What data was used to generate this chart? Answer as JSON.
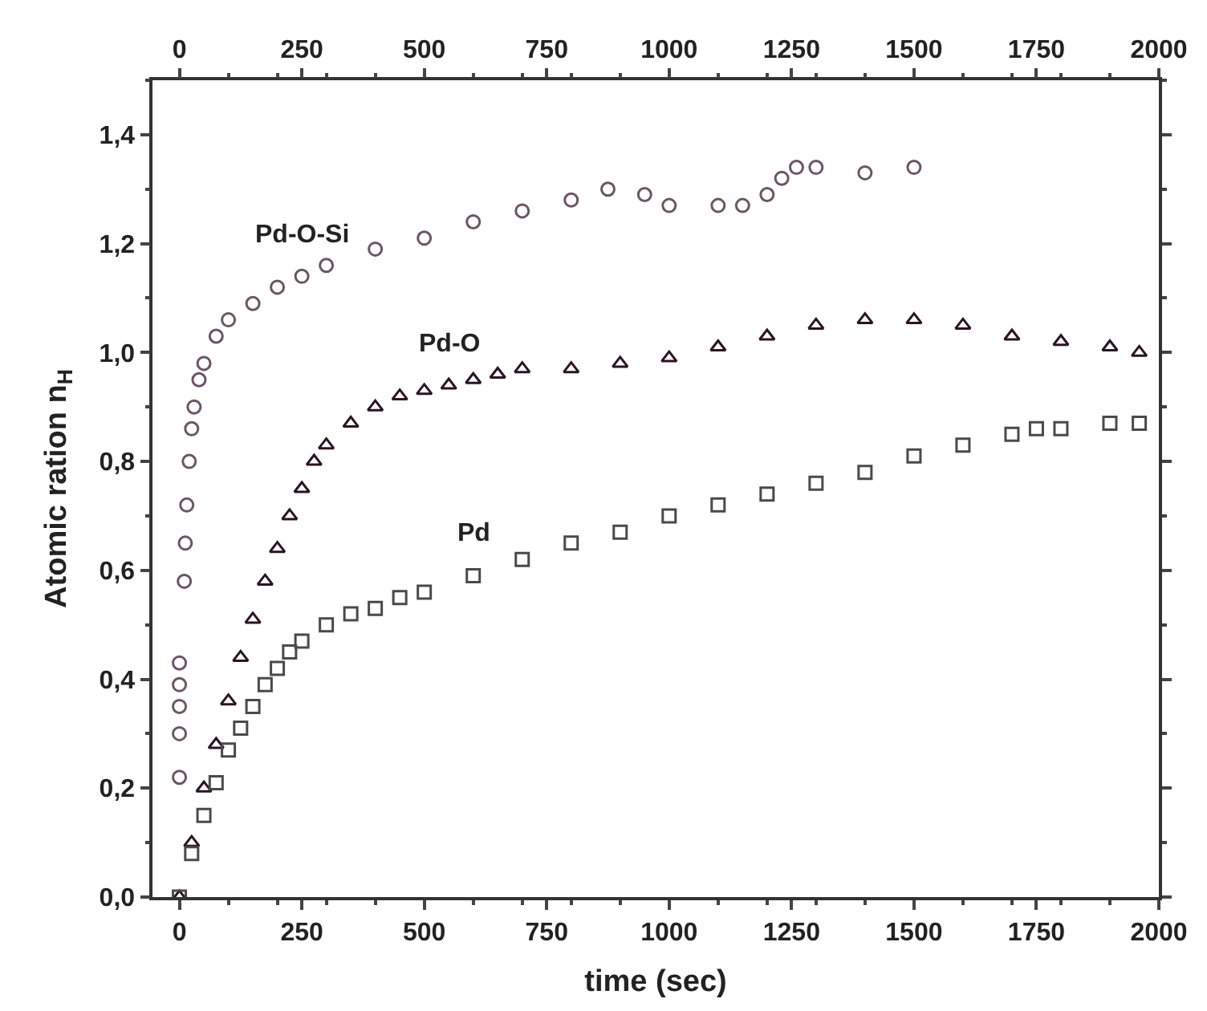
{
  "chart_data": {
    "type": "scatter",
    "xlabel": "time (sec)",
    "ylabel": "Atomic ration n$_{H}$",
    "xlim": [
      -55,
      2000
    ],
    "ylim": [
      0,
      1.5
    ],
    "xticks": [
      0,
      250,
      500,
      750,
      1000,
      1250,
      1500,
      1750,
      2000
    ],
    "x2lim": [
      -55,
      2000
    ],
    "x2ticks": [
      0,
      250,
      500,
      750,
      1000,
      1250,
      1500,
      1750,
      2000
    ],
    "yticks": [
      {
        "value": 0,
        "label": "0,0"
      },
      {
        "value": 0.2,
        "label": "0,2"
      },
      {
        "value": 0.4,
        "label": "0,4"
      },
      {
        "value": 0.6,
        "label": "0,6"
      },
      {
        "value": 0.8,
        "label": "0,8"
      },
      {
        "value": 1.0,
        "label": "1,0"
      },
      {
        "value": 1.2,
        "label": "1,2"
      },
      {
        "value": 1.4,
        "label": "1,4"
      }
    ],
    "legend": false,
    "series": [
      {
        "name": "Pd-O-Si",
        "color": "#6b5566",
        "marker": "circle",
        "x": [
          0,
          0,
          0,
          0,
          0,
          10,
          12,
          15,
          20,
          25,
          30,
          40,
          50,
          75,
          100,
          150,
          200,
          250,
          300,
          400,
          500,
          600,
          700,
          800,
          875,
          950,
          1000,
          1100,
          1150,
          1200,
          1230,
          1260,
          1300,
          1400,
          1500
        ],
        "values": [
          0.22,
          0.3,
          0.35,
          0.39,
          0.43,
          0.58,
          0.65,
          0.72,
          0.8,
          0.86,
          0.9,
          0.95,
          0.98,
          1.03,
          1.06,
          1.09,
          1.12,
          1.14,
          1.16,
          1.19,
          1.21,
          1.24,
          1.26,
          1.28,
          1.3,
          1.29,
          1.27,
          1.27,
          1.27,
          1.29,
          1.32,
          1.34,
          1.34,
          1.33,
          1.34
        ]
      },
      {
        "name": "Pd-O",
        "color": "#2a1424",
        "marker": "triangle",
        "x": [
          0,
          25,
          50,
          75,
          100,
          125,
          150,
          175,
          200,
          225,
          250,
          275,
          300,
          350,
          400,
          450,
          500,
          550,
          600,
          650,
          700,
          800,
          900,
          1000,
          1100,
          1200,
          1300,
          1400,
          1500,
          1600,
          1700,
          1800,
          1900,
          1960
        ],
        "values": [
          0.0,
          0.1,
          0.2,
          0.28,
          0.36,
          0.44,
          0.51,
          0.58,
          0.64,
          0.7,
          0.75,
          0.8,
          0.83,
          0.87,
          0.9,
          0.92,
          0.93,
          0.94,
          0.95,
          0.96,
          0.97,
          0.97,
          0.98,
          0.99,
          1.01,
          1.03,
          1.05,
          1.06,
          1.06,
          1.05,
          1.03,
          1.02,
          1.01,
          1.0
        ]
      },
      {
        "name": "Pd",
        "color": "#4a4a4a",
        "marker": "square",
        "x": [
          0,
          25,
          50,
          75,
          100,
          125,
          150,
          175,
          200,
          225,
          250,
          300,
          350,
          400,
          450,
          500,
          600,
          700,
          800,
          900,
          1000,
          1100,
          1200,
          1300,
          1400,
          1500,
          1600,
          1700,
          1750,
          1800,
          1900,
          1960
        ],
        "values": [
          0.0,
          0.08,
          0.15,
          0.21,
          0.27,
          0.31,
          0.35,
          0.39,
          0.42,
          0.45,
          0.47,
          0.5,
          0.52,
          0.53,
          0.55,
          0.56,
          0.59,
          0.62,
          0.65,
          0.67,
          0.7,
          0.72,
          0.74,
          0.76,
          0.78,
          0.81,
          0.83,
          0.85,
          0.86,
          0.86,
          0.87,
          0.87
        ]
      }
    ]
  }
}
